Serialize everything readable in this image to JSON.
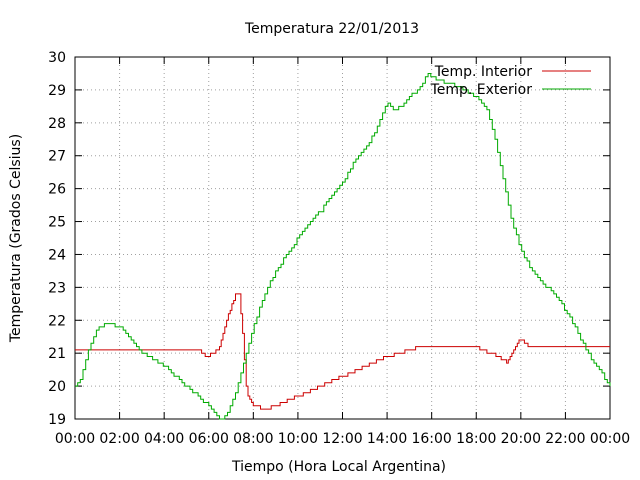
{
  "chart_data": {
    "type": "line",
    "title": "Temperatura 22/01/2013",
    "xlabel": "Tiempo (Hora Local Argentina)",
    "ylabel": "Temperatura (Grados Celsius)",
    "x_unit": "hours",
    "xlim": [
      0,
      24
    ],
    "ylim": [
      19,
      30
    ],
    "x_ticks": [
      0,
      2,
      4,
      6,
      8,
      10,
      12,
      14,
      16,
      18,
      20,
      22,
      24
    ],
    "x_tick_labels": [
      "00:00",
      "02:00",
      "04:00",
      "06:00",
      "08:00",
      "10:00",
      "12:00",
      "14:00",
      "16:00",
      "18:00",
      "20:00",
      "22:00",
      "00:00"
    ],
    "y_ticks": [
      19,
      20,
      21,
      22,
      23,
      24,
      25,
      26,
      27,
      28,
      29,
      30
    ],
    "y_tick_labels": [
      "19",
      "20",
      "21",
      "22",
      "23",
      "24",
      "25",
      "26",
      "27",
      "28",
      "29",
      "30"
    ],
    "grid": true,
    "legend_position": "top-right",
    "series": [
      {
        "name": "Temp. Interior",
        "color": "#cc0000",
        "x": [
          0,
          2,
          4,
          5.5,
          5.9,
          6.2,
          6.5,
          6.8,
          7.0,
          7.15,
          7.35,
          7.5,
          7.7,
          8.0,
          8.5,
          9.0,
          10.0,
          11.0,
          12.0,
          13.0,
          14.0,
          15.0,
          15.5,
          17.0,
          18.0,
          18.6,
          19.0,
          19.4,
          19.7,
          19.9,
          20.1,
          20.3,
          20.5,
          21.0,
          22.0,
          23.0,
          24.0
        ],
        "y": [
          21.1,
          21.1,
          21.1,
          21.1,
          20.9,
          21.0,
          21.2,
          22.0,
          22.4,
          22.7,
          22.9,
          21.8,
          19.8,
          19.4,
          19.3,
          19.4,
          19.7,
          20.0,
          20.3,
          20.6,
          20.9,
          21.1,
          21.2,
          21.2,
          21.2,
          21.0,
          20.9,
          20.7,
          21.1,
          21.4,
          21.4,
          21.2,
          21.2,
          21.2,
          21.2,
          21.2,
          21.2
        ],
        "hold": 0.08
      },
      {
        "name": "Temp. Exterior",
        "color": "#00aa00",
        "x": [
          0,
          0.3,
          0.7,
          1.0,
          1.5,
          2.0,
          2.5,
          3.0,
          3.5,
          4.0,
          4.5,
          5.0,
          5.5,
          6.0,
          6.3,
          6.6,
          7.0,
          7.5,
          8.0,
          8.5,
          9.0,
          9.5,
          10.0,
          10.5,
          11.0,
          11.5,
          12.0,
          12.5,
          13.0,
          13.5,
          14.0,
          14.3,
          14.7,
          15.0,
          15.5,
          15.8,
          16.2,
          16.8,
          17.5,
          18.0,
          18.5,
          18.8,
          19.0,
          19.3,
          19.6,
          20.0,
          20.5,
          21.0,
          21.5,
          22.0,
          22.5,
          23.0,
          23.5,
          24.0
        ],
        "y": [
          20.0,
          20.3,
          21.3,
          21.8,
          21.9,
          21.8,
          21.4,
          21.0,
          20.8,
          20.6,
          20.3,
          20.0,
          19.7,
          19.4,
          19.1,
          19.0,
          19.4,
          20.5,
          21.8,
          22.8,
          23.5,
          24.0,
          24.5,
          25.0,
          25.3,
          25.8,
          26.2,
          26.8,
          27.2,
          27.8,
          28.6,
          28.4,
          28.5,
          28.8,
          29.1,
          29.5,
          29.3,
          29.2,
          29.0,
          28.8,
          28.4,
          27.6,
          27.0,
          26.0,
          25.0,
          24.1,
          23.5,
          23.1,
          22.8,
          22.3,
          21.7,
          21.0,
          20.5,
          20.0
        ],
        "hold": 0.12
      }
    ]
  }
}
